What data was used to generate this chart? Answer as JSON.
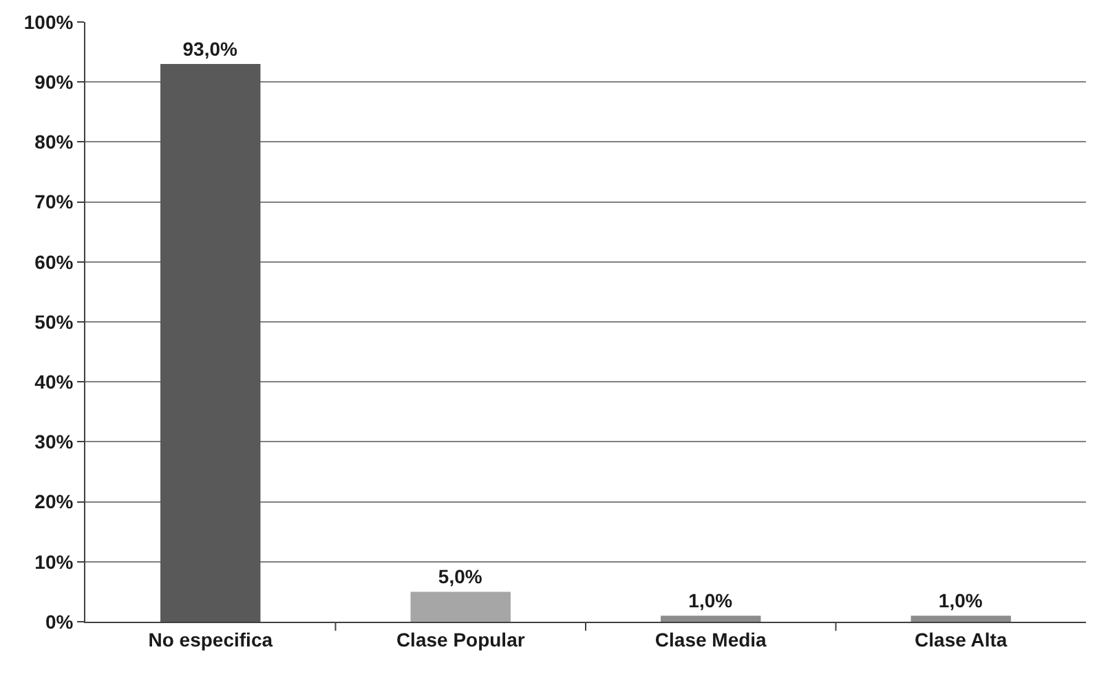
{
  "chart_data": {
    "type": "bar",
    "categories": [
      "No especifica",
      "Clase Popular",
      "Clase Media",
      "Clase Alta"
    ],
    "values": [
      93.0,
      5.0,
      1.0,
      1.0
    ],
    "colors": [
      "#595959",
      "#a6a6a6",
      "#8c8c8c",
      "#8c8c8c"
    ],
    "value_labels": [
      "93,0%",
      "5,0%",
      "1,0%",
      "1,0%"
    ],
    "ylim": [
      0,
      100
    ],
    "yticks": [
      {
        "value": 0,
        "label": "0%"
      },
      {
        "value": 10,
        "label": "10%"
      },
      {
        "value": 20,
        "label": "20%"
      },
      {
        "value": 30,
        "label": "30%"
      },
      {
        "value": 40,
        "label": "40%"
      },
      {
        "value": 50,
        "label": "50%"
      },
      {
        "value": 60,
        "label": "60%"
      },
      {
        "value": 70,
        "label": "70%"
      },
      {
        "value": 80,
        "label": "80%"
      },
      {
        "value": 90,
        "label": "90%"
      },
      {
        "value": 100,
        "label": "100%"
      }
    ],
    "grid": "y"
  }
}
